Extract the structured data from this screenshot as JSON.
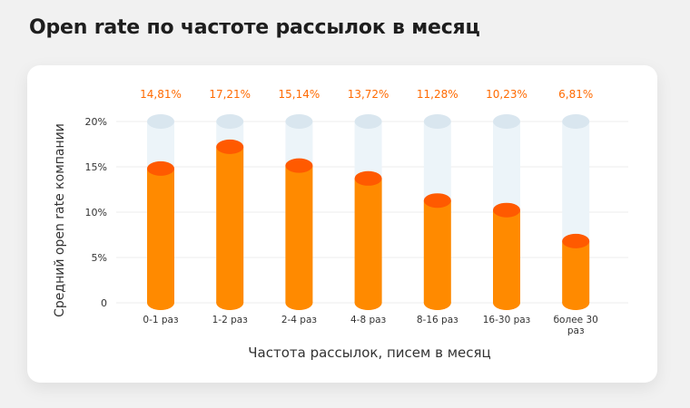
{
  "title": "Open rate по частоте рассылок в месяц",
  "chart_data": {
    "type": "bar",
    "ylabel": "Средний open rate компании",
    "xlabel": "Частота рассылок, писем в месяц",
    "ylim": [
      0,
      20
    ],
    "yticks": [
      0,
      5,
      10,
      15,
      20
    ],
    "ytick_labels": [
      "0",
      "5%",
      "10%",
      "15%",
      "20%"
    ],
    "categories": [
      "0-1 раз",
      "1-2 раз",
      "2-4 раз",
      "4-8 раз",
      "8-16 раз",
      "16-30 раз",
      "более 30 раз"
    ],
    "values": [
      14.81,
      17.21,
      15.14,
      13.72,
      11.28,
      10.23,
      6.81
    ],
    "data_labels": [
      "14,81%",
      "17,21%",
      "15,14%",
      "13,72%",
      "11,28%",
      "10,23%",
      "6,81%"
    ],
    "grid": true,
    "colors": {
      "bar": "#ff8a00",
      "bar_top": "#ff5a00",
      "track": "#ecf4f9",
      "track_top": "#d9e6ef",
      "data_label": "#ff6a00"
    }
  }
}
